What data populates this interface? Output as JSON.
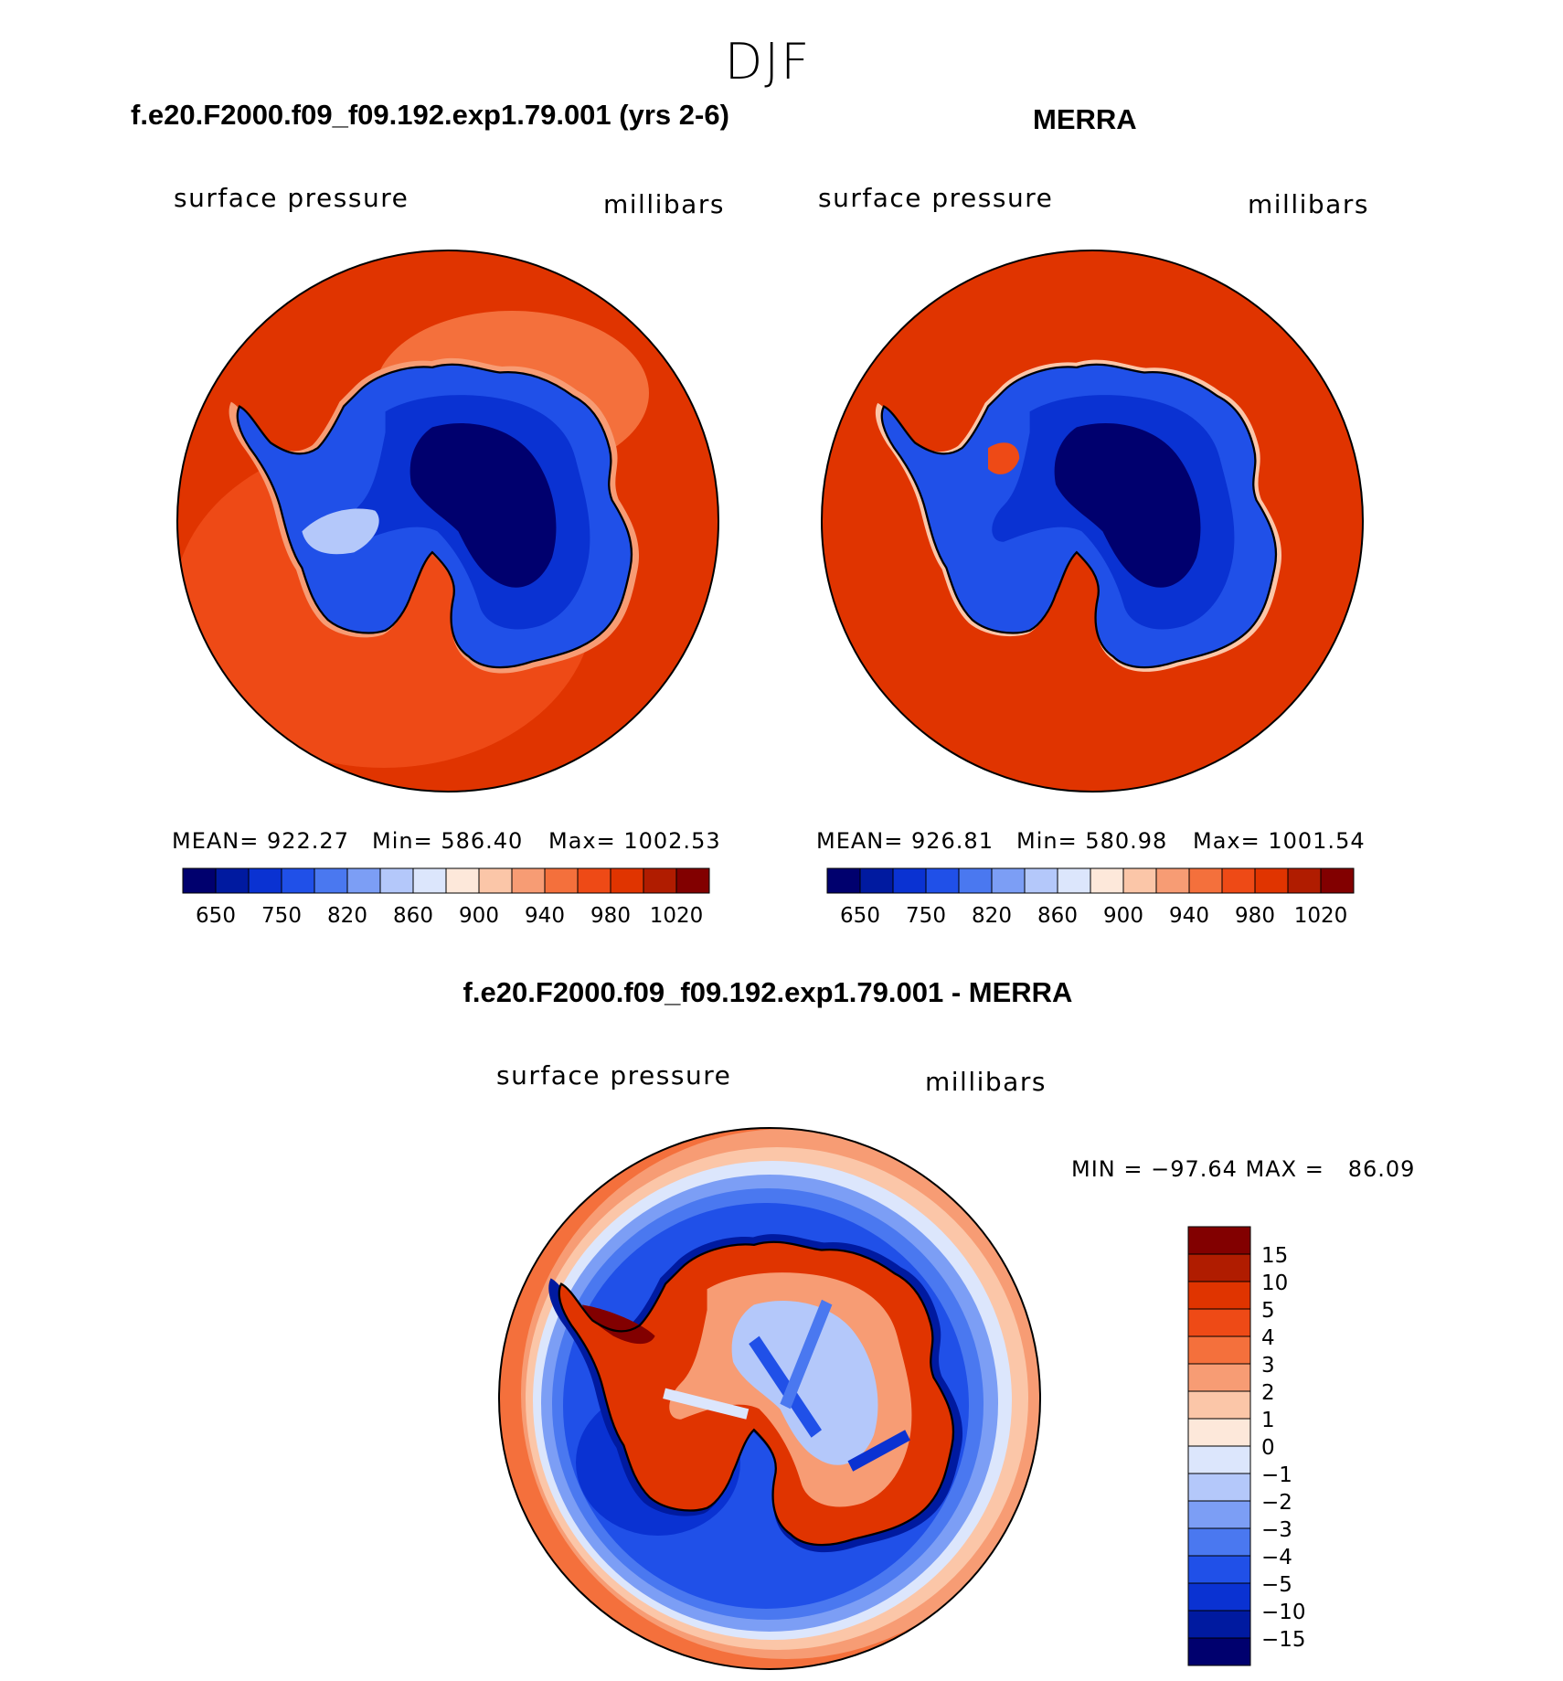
{
  "figure": {
    "title": "DJF",
    "colors": {
      "land_outline": "#000000",
      "background": "#ffffff"
    }
  },
  "chart_data": [
    {
      "type": "heatmap",
      "title": "f.e20.F2000.f09_f09.192.exp1.79.001 (yrs 2-6)",
      "field_label": "surface pressure",
      "units": "millibars",
      "projection": "south polar stereographic",
      "stats": {
        "mean": "MEAN= 922.27",
        "min": "Min= 586.40",
        "max": "Max= 1002.53"
      },
      "colorbar": {
        "levels": [
          650,
          700,
          750,
          800,
          820,
          840,
          860,
          880,
          900,
          920,
          940,
          960,
          980,
          1000,
          1020
        ],
        "tick_labels": [
          "650",
          "750",
          "820",
          "860",
          "900",
          "940",
          "980",
          "1020"
        ],
        "colors": [
          "#00006e",
          "#001aa0",
          "#0a32d2",
          "#2050e8",
          "#4a78f0",
          "#7c9ef5",
          "#b4c8fa",
          "#dce6fc",
          "#fde8da",
          "#fbc6a8",
          "#f79c74",
          "#f4703c",
          "#ee4a16",
          "#e03400",
          "#b01c00",
          "#820000"
        ]
      }
    },
    {
      "type": "heatmap",
      "title": "MERRA",
      "field_label": "surface pressure",
      "units": "millibars",
      "projection": "south polar stereographic",
      "stats": {
        "mean": "MEAN= 926.81",
        "min": "Min= 580.98",
        "max": "Max= 1001.54"
      },
      "colorbar": {
        "levels": [
          650,
          700,
          750,
          800,
          820,
          840,
          860,
          880,
          900,
          920,
          940,
          960,
          980,
          1000,
          1020
        ],
        "tick_labels": [
          "650",
          "750",
          "820",
          "860",
          "900",
          "940",
          "980",
          "1020"
        ],
        "colors": [
          "#00006e",
          "#001aa0",
          "#0a32d2",
          "#2050e8",
          "#4a78f0",
          "#7c9ef5",
          "#b4c8fa",
          "#dce6fc",
          "#fde8da",
          "#fbc6a8",
          "#f79c74",
          "#f4703c",
          "#ee4a16",
          "#e03400",
          "#b01c00",
          "#820000"
        ]
      }
    },
    {
      "type": "heatmap",
      "title": "f.e20.F2000.f09_f09.192.exp1.79.001 - MERRA",
      "field_label": "surface pressure",
      "units": "millibars",
      "projection": "south polar stereographic",
      "stats": {
        "minmax": "MIN = −97.64 MAX =   86.09"
      },
      "colorbar": {
        "levels": [
          -15,
          -10,
          -5,
          -4,
          -3,
          -2,
          -1,
          0,
          1,
          2,
          3,
          4,
          5,
          10,
          15
        ],
        "tick_labels": [
          "15",
          "10",
          "5",
          "4",
          "3",
          "2",
          "1",
          "0",
          "−1",
          "−2",
          "−3",
          "−4",
          "−5",
          "−10",
          "−15"
        ],
        "colors": [
          "#00006e",
          "#001aa0",
          "#0a32d2",
          "#2050e8",
          "#4a78f0",
          "#7c9ef5",
          "#b4c8fa",
          "#dce6fc",
          "#fde8da",
          "#fbc6a8",
          "#f79c74",
          "#f4703c",
          "#ee4a16",
          "#e03400",
          "#b01c00",
          "#820000"
        ]
      }
    }
  ]
}
